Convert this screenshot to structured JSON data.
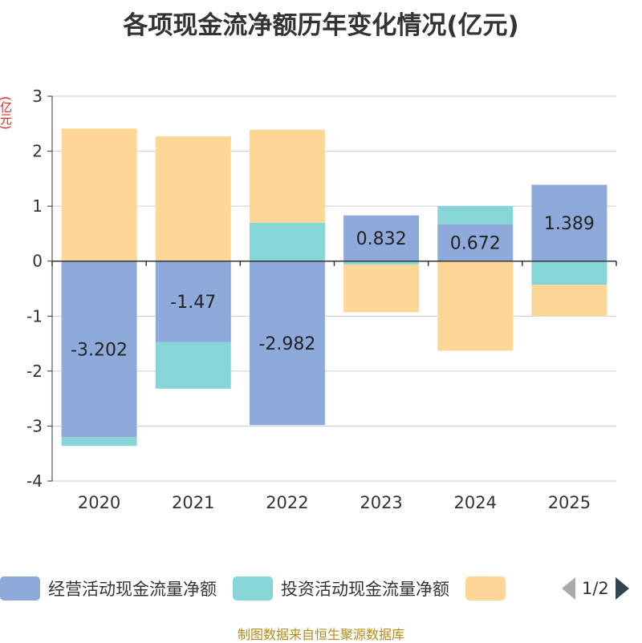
{
  "chart_data": {
    "type": "bar",
    "stacked": true,
    "title": "各项现金流净额历年变化情况(亿元)",
    "ylabel": "(亿元)",
    "xlabel": "",
    "ylim": [
      -4,
      3
    ],
    "yticks": [
      3,
      2,
      1,
      0,
      -1,
      -2,
      -3,
      -4
    ],
    "categories": [
      "2020",
      "2021",
      "2022",
      "2023",
      "2024",
      "2025"
    ],
    "series": [
      {
        "name": "经营活动现金流量净额",
        "color": "#8eaadb",
        "values": [
          -3.202,
          -1.47,
          -2.982,
          0.832,
          0.672,
          1.389
        ],
        "labels": [
          "-3.202",
          "-1.47",
          "-2.982",
          "0.832",
          "0.672",
          "1.389"
        ]
      },
      {
        "name": "投资活动现金流量净额",
        "color": "#86d6d8",
        "values": [
          -0.16,
          -0.85,
          0.7,
          -0.06,
          0.33,
          -0.43
        ]
      },
      {
        "name": "",
        "color": "#fed797",
        "values": [
          2.41,
          2.27,
          1.69,
          -0.87,
          -1.63,
          -0.57
        ]
      }
    ],
    "grid": true
  },
  "legend": {
    "items": [
      "经营活动现金流量净额",
      "投资活动现金流量净额",
      ""
    ],
    "page": "1/2"
  },
  "footer": "制图数据来自恒生聚源数据库"
}
